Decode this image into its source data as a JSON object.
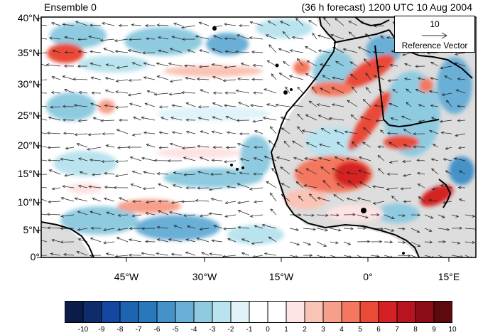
{
  "title_left": "Ensemble 0",
  "title_right": "(36 h forecast) 1200 UTC 10 Aug 2004",
  "y_ticks": [
    "40°N",
    "35°N",
    "30°N",
    "25°N",
    "20°N",
    "15°N",
    "10°N",
    "5°N",
    "0°"
  ],
  "x_ticks": [
    "45°W",
    "30°W",
    "15°W",
    "0°",
    "15°E"
  ],
  "reference_vector": {
    "value": "10",
    "label": "Reference Vector"
  },
  "colorbar": {
    "labels": [
      "-10",
      "-9",
      "-8",
      "-7",
      "-6",
      "-5",
      "-4",
      "-3",
      "-2",
      "-1",
      "0",
      "1",
      "2",
      "3",
      "4",
      "5",
      "6",
      "7",
      "8",
      "9",
      "10"
    ],
    "colors": [
      "#0b1c48",
      "#0d2c6a",
      "#1448a0",
      "#1f64b0",
      "#2a78bc",
      "#4592c8",
      "#6aafd6",
      "#8fcbe0",
      "#b9e3ee",
      "#dff3f9",
      "#ffffff",
      "#ffffff",
      "#fde3e3",
      "#f9c3b6",
      "#f6a08c",
      "#f3785f",
      "#ea4a38",
      "#d52024",
      "#b81420",
      "#8e0c18",
      "#5c0a0c"
    ]
  },
  "map_colors": {
    "land_shading": "#dddddd",
    "coast": "#000000",
    "arrow": "#222222"
  }
}
